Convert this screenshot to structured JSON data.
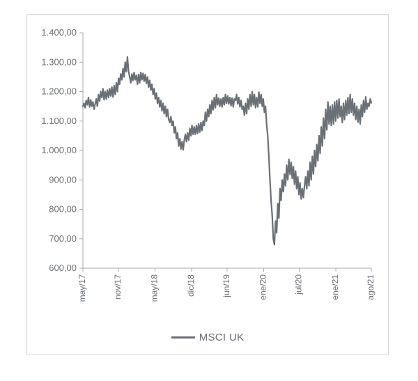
{
  "chart": {
    "type": "line",
    "series_name": "MSCI UK",
    "line_color": "#6b7076",
    "line_width": 2.2,
    "background_color": "#ffffff",
    "border_color": "#d2d2d2",
    "axis_color": "#a8a8a8",
    "tick_font_color": "#6b7076",
    "ylabel_fontsize": 13,
    "xlabel_fontsize": 12,
    "legend_fontsize": 15,
    "ylim": [
      600,
      1400
    ],
    "ytick_step": 100,
    "ytick_labels": [
      "600,00",
      "700,00",
      "800,00",
      "900,00",
      "1.000,00",
      "1.100,00",
      "1.200,00",
      "1.300,00",
      "1.400,00"
    ],
    "xtick_labels": [
      "may/17",
      "nov/17",
      "may/18",
      "dic/18",
      "jun/19",
      "ene/20",
      "jul/20",
      "ene/21",
      "ago/21"
    ],
    "xlim_index": [
      0,
      260
    ],
    "xtick_index": [
      0,
      32,
      65,
      98,
      130,
      163,
      195,
      228,
      260
    ],
    "values": [
      1150,
      1160,
      1145,
      1170,
      1155,
      1180,
      1148,
      1172,
      1150,
      1165,
      1140,
      1158,
      1175,
      1150,
      1190,
      1168,
      1200,
      1180,
      1210,
      1172,
      1200,
      1175,
      1205,
      1180,
      1210,
      1185,
      1215,
      1182,
      1220,
      1190,
      1230,
      1200,
      1245,
      1225,
      1260,
      1240,
      1278,
      1250,
      1300,
      1268,
      1318,
      1270,
      1250,
      1230,
      1260,
      1238,
      1265,
      1240,
      1255,
      1225,
      1258,
      1230,
      1265,
      1240,
      1262,
      1235,
      1258,
      1228,
      1250,
      1215,
      1238,
      1205,
      1225,
      1190,
      1210,
      1175,
      1195,
      1160,
      1180,
      1148,
      1170,
      1135,
      1160,
      1125,
      1150,
      1115,
      1140,
      1105,
      1095,
      1115,
      1085,
      1100,
      1060,
      1080,
      1040,
      1060,
      1015,
      1040,
      1005,
      1030,
      1002,
      1035,
      1055,
      1030,
      1060,
      1035,
      1075,
      1050,
      1085,
      1055,
      1080,
      1055,
      1085,
      1058,
      1090,
      1062,
      1095,
      1068,
      1100,
      1085,
      1130,
      1100,
      1140,
      1115,
      1155,
      1125,
      1170,
      1138,
      1180,
      1145,
      1190,
      1155,
      1178,
      1150,
      1175,
      1148,
      1180,
      1155,
      1190,
      1160,
      1185,
      1158,
      1180,
      1152,
      1178,
      1148,
      1175,
      1170,
      1190,
      1158,
      1180,
      1148,
      1170,
      1140,
      1150,
      1120,
      1160,
      1125,
      1175,
      1140,
      1190,
      1150,
      1200,
      1155,
      1190,
      1145,
      1180,
      1148,
      1198,
      1160,
      1190,
      1150,
      1175,
      1130,
      1150,
      1090,
      1050,
      980,
      900,
      830,
      780,
      700,
      680,
      760,
      720,
      820,
      770,
      870,
      830,
      900,
      860,
      920,
      880,
      950,
      900,
      970,
      918,
      960,
      905,
      945,
      885,
      930,
      870,
      910,
      850,
      890,
      835,
      870,
      840,
      880,
      910,
      870,
      930,
      880,
      960,
      900,
      980,
      920,
      1000,
      945,
      1020,
      965,
      1050,
      990,
      1080,
      1015,
      1110,
      1040,
      1140,
      1070,
      1165,
      1090,
      1150,
      1085,
      1155,
      1090,
      1165,
      1100,
      1170,
      1110,
      1175,
      1115,
      1150,
      1095,
      1160,
      1105,
      1170,
      1120,
      1180,
      1125,
      1190,
      1130,
      1175,
      1120,
      1160,
      1105,
      1150,
      1096,
      1140,
      1090,
      1155,
      1115,
      1170,
      1130,
      1182,
      1140,
      1160,
      1150,
      1175,
      1162
    ]
  }
}
